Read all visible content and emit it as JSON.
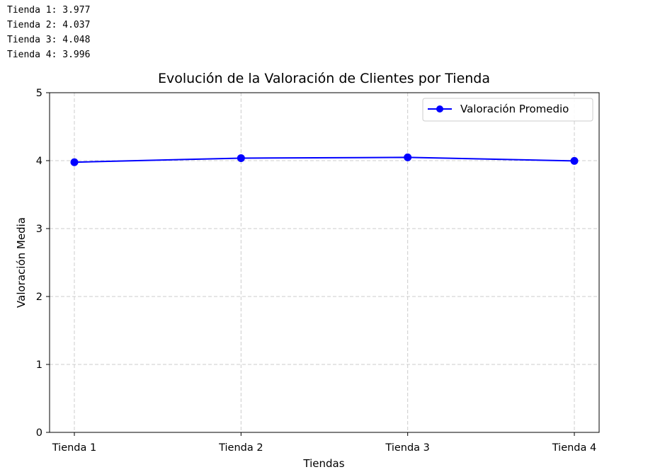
{
  "console_output": [
    "Tienda 1: 3.977",
    "Tienda 2: 4.037",
    "Tienda 3: 4.048",
    "Tienda 4: 3.996"
  ],
  "chart_data": {
    "type": "line",
    "title": "Evolución de la Valoración de Clientes por Tienda",
    "xlabel": "Tiendas",
    "ylabel": "Valoración Media",
    "categories": [
      "Tienda 1",
      "Tienda 2",
      "Tienda 3",
      "Tienda 4"
    ],
    "series": [
      {
        "name": "Valoración Promedio",
        "values": [
          3.977,
          4.037,
          4.048,
          3.996
        ],
        "color": "#0000ff",
        "marker": "circle"
      }
    ],
    "ylim": [
      0,
      5
    ],
    "yticks": [
      "0",
      "1",
      "2",
      "3",
      "4",
      "5"
    ],
    "grid": true,
    "grid_style": "dashed",
    "legend_position": "top-right"
  }
}
